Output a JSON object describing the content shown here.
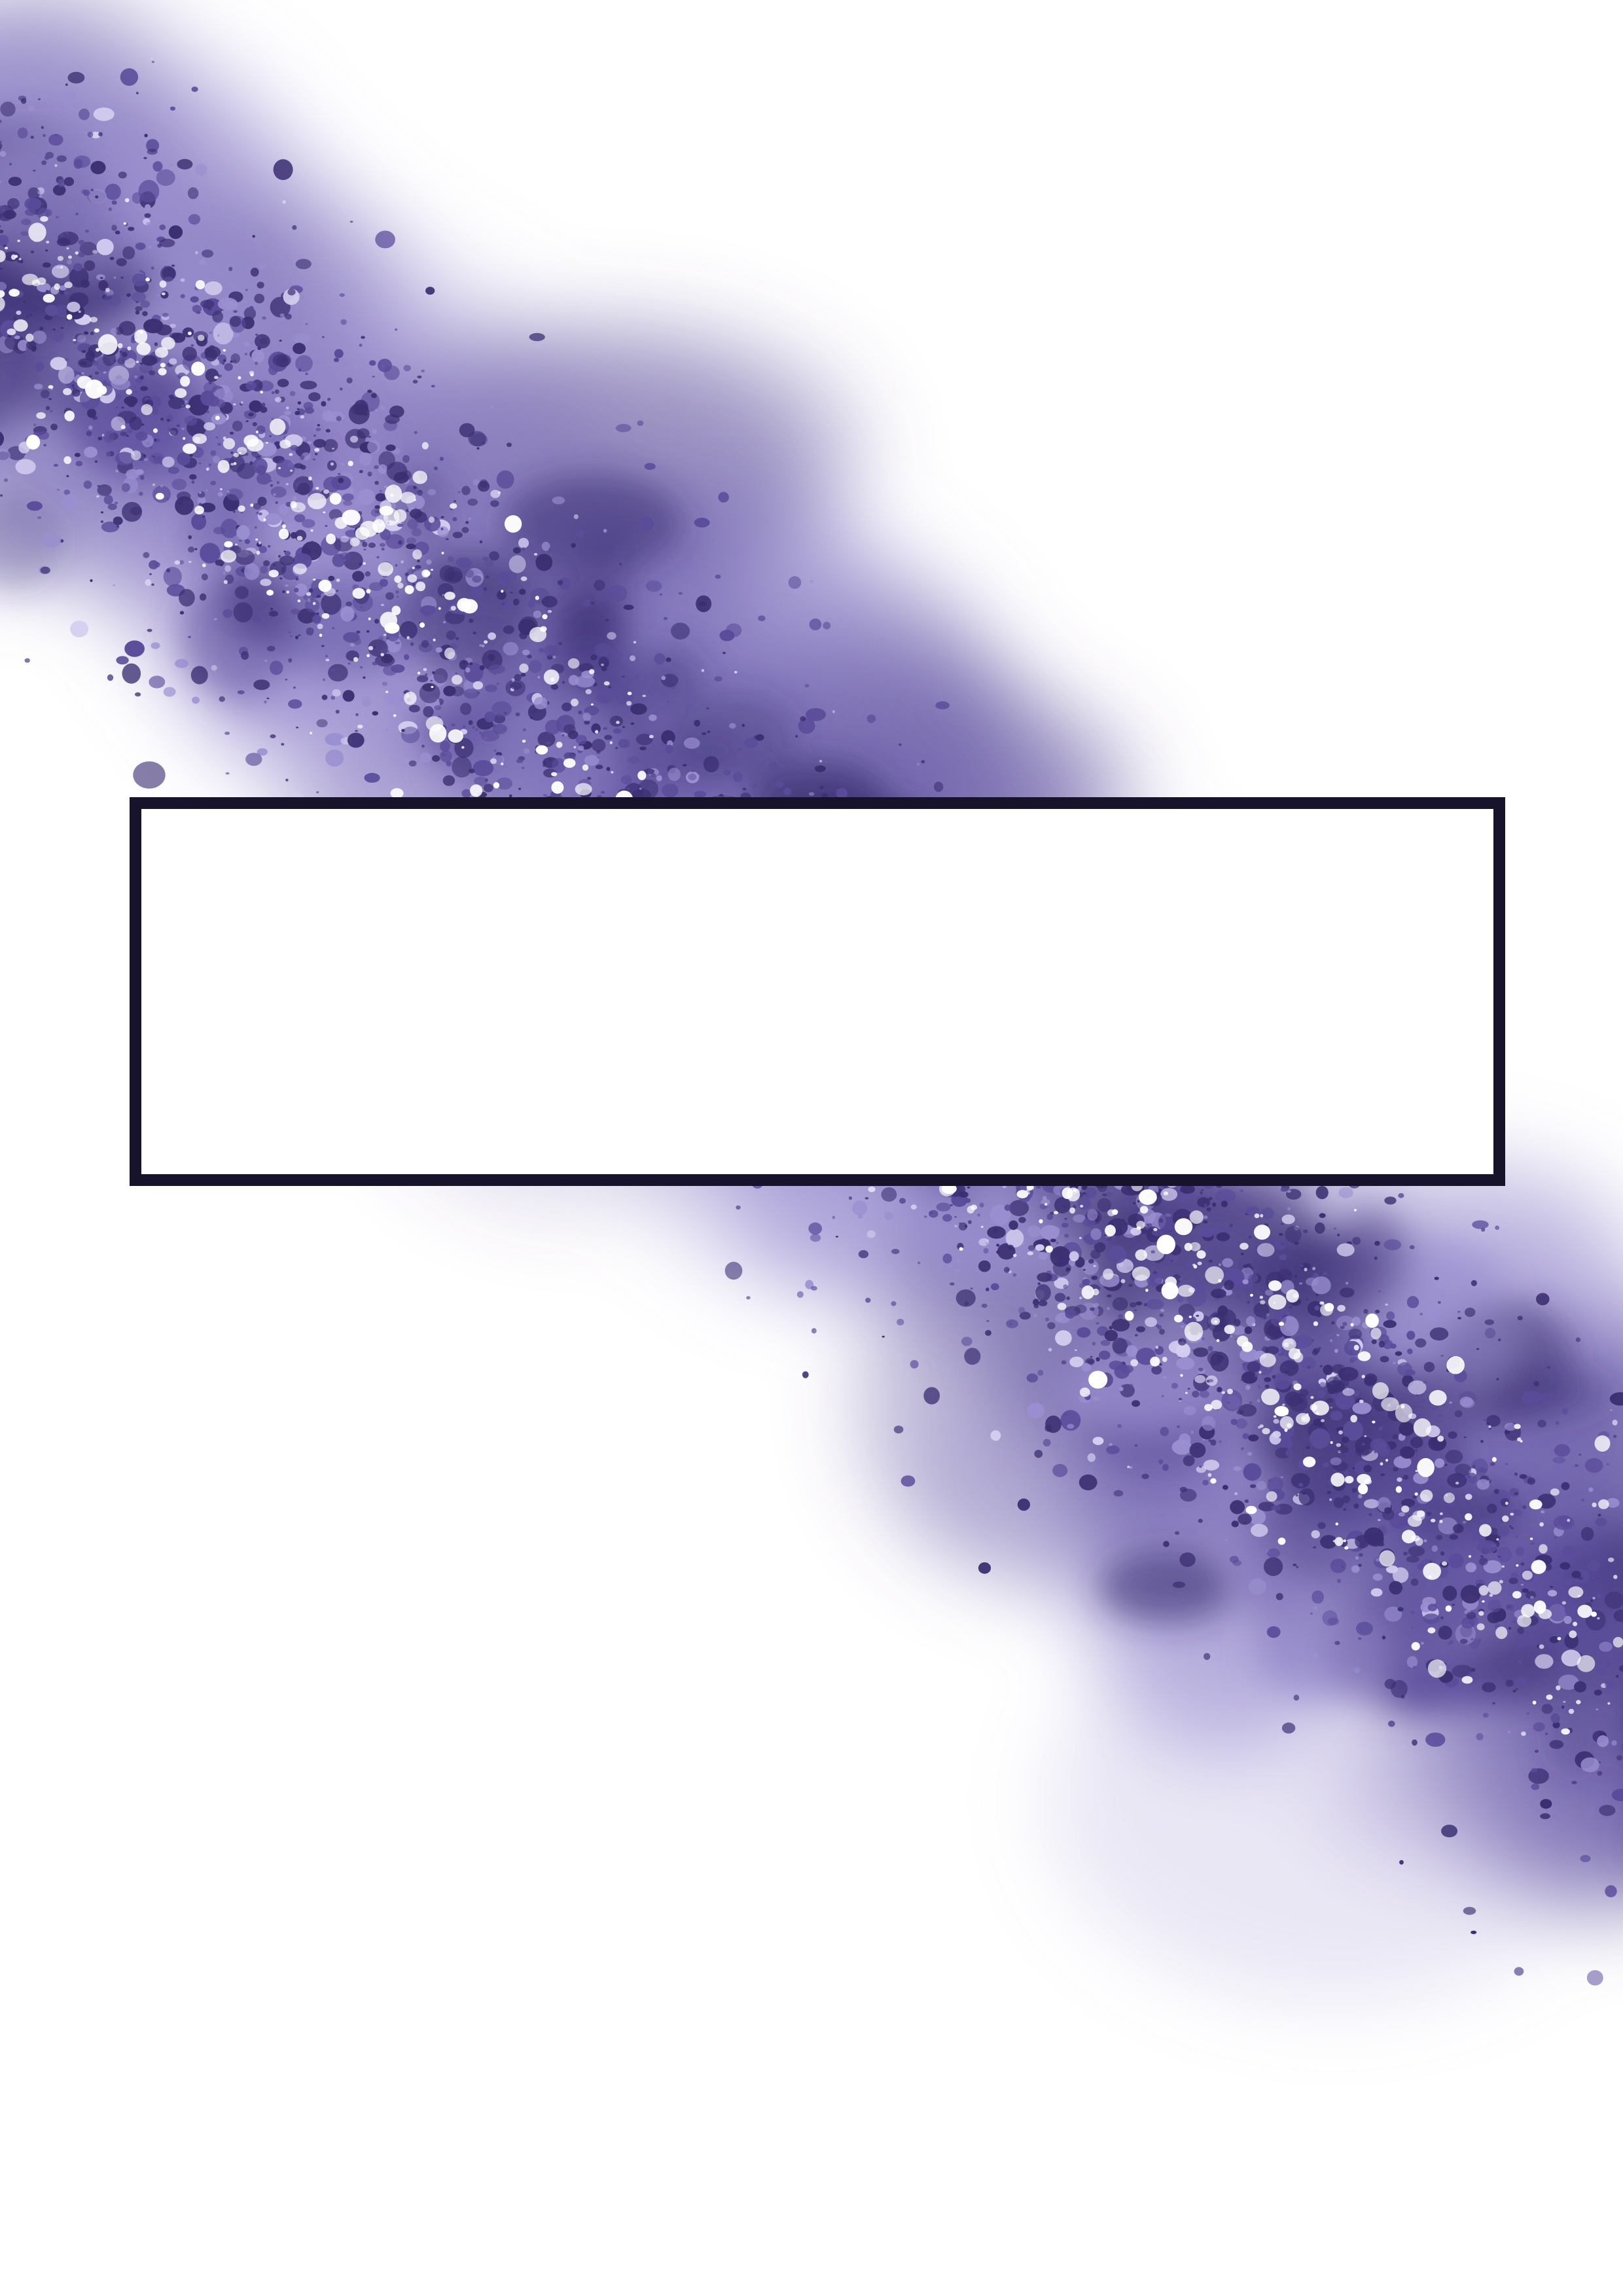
{
  "colors": {
    "background": "#ffffff",
    "glitter_dark": "#3b2f72",
    "glitter_mid": "#5a4c9a",
    "glitter_light": "#9a8fd0",
    "glitter_pale": "#d4cff0",
    "frame_border": "#16132b"
  },
  "title_box": {
    "text": ""
  }
}
